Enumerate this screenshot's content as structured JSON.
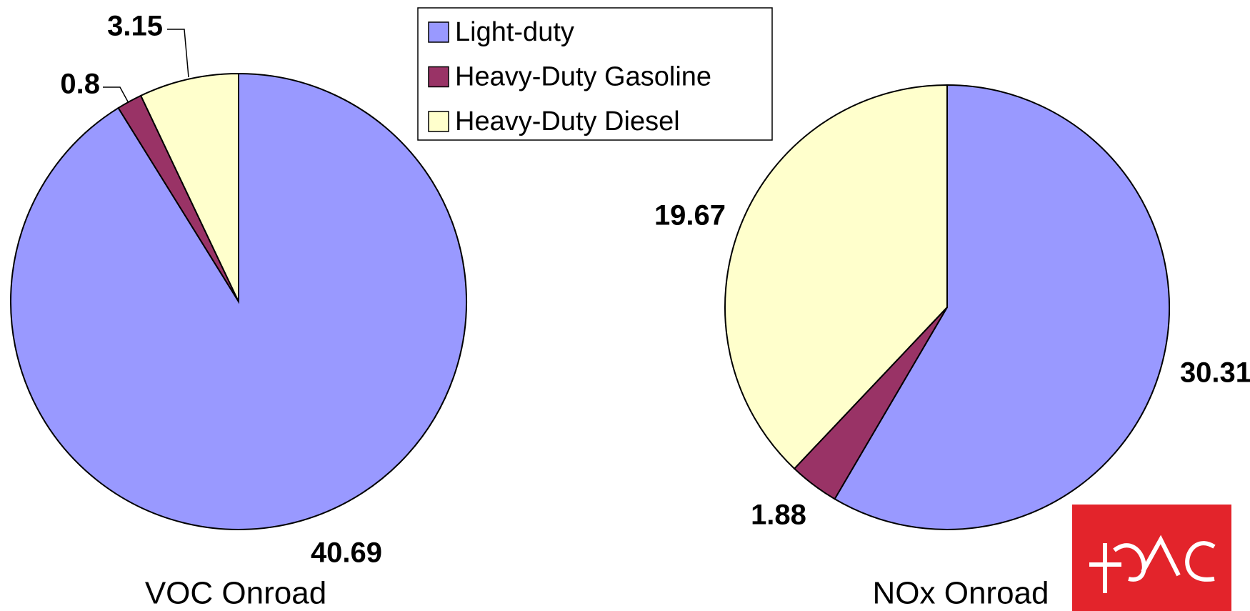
{
  "chart_data": [
    {
      "type": "pie",
      "title": "VOC Onroad",
      "categories": [
        "Light-duty",
        "Heavy-Duty Gasoline",
        "Heavy-Duty Diesel"
      ],
      "colors": [
        "#9999ff",
        "#993366",
        "#ffffcc"
      ],
      "values": [
        40.69,
        0.8,
        3.15
      ]
    },
    {
      "type": "pie",
      "title": "NOx Onroad",
      "values": [
        30.31,
        1.88,
        19.67
      ]
    }
  ]
}
